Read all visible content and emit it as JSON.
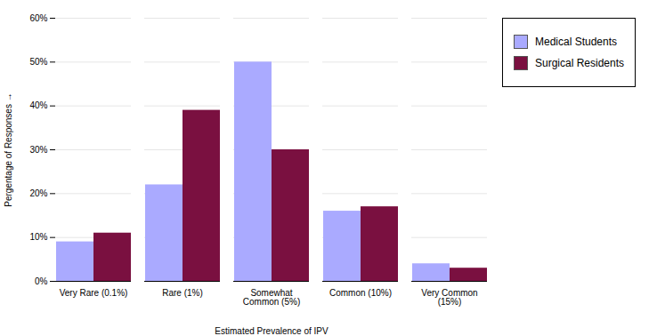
{
  "chart_data": {
    "type": "bar",
    "categories": [
      "Very Rare (0.1%)",
      "Rare (1%)",
      "Somewhat\nCommon (5%)",
      "Common (10%)",
      "Very Common\n(15%)"
    ],
    "series": [
      {
        "name": "Medical Students",
        "color": "#aaaaff",
        "values": [
          9,
          22,
          50,
          16,
          4
        ]
      },
      {
        "name": "Surgical Residents",
        "color": "#7a1040",
        "values": [
          11,
          39,
          30,
          17,
          3
        ]
      }
    ],
    "ylim": [
      0,
      60
    ],
    "yticks": [
      {
        "value": 0,
        "label": "0%"
      },
      {
        "value": 10,
        "label": "10%"
      },
      {
        "value": 20,
        "label": "20%"
      },
      {
        "value": 30,
        "label": "30%"
      },
      {
        "value": 40,
        "label": "40%"
      },
      {
        "value": 50,
        "label": "50%"
      },
      {
        "value": 60,
        "label": "60%"
      }
    ],
    "ylabel": "Pergentage of Responses",
    "xlabel": "Estimated Prevalence of IPV",
    "grid": true,
    "legend": "right"
  }
}
